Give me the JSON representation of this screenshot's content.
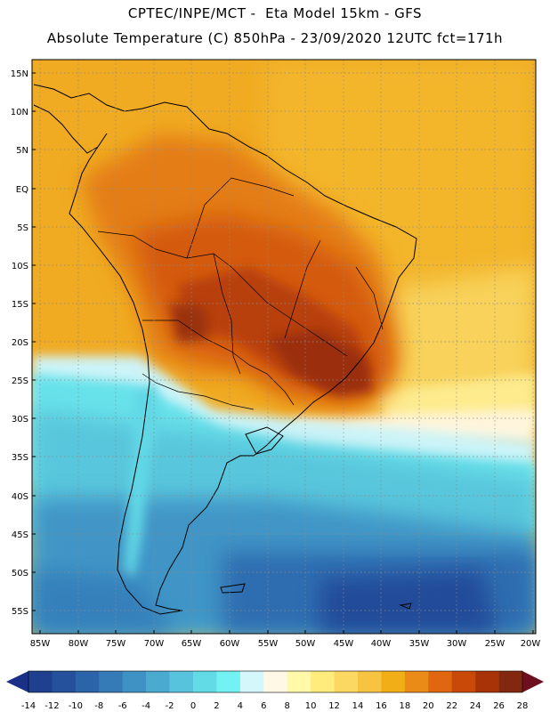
{
  "header": {
    "line1": "CPTEC/INPE/MCT -  Eta Model 15km - GFS",
    "line2": "Absolute Temperature (C) 850hPa - 23/09/2020 12UTC fct=171h"
  },
  "latitude_labels": [
    "15N",
    "10N",
    "5N",
    "EQ",
    "5S",
    "10S",
    "15S",
    "20S",
    "25S",
    "30S",
    "35S",
    "40S",
    "45S",
    "50S",
    "55S"
  ],
  "longitude_labels": [
    "85W",
    "80W",
    "75W",
    "70W",
    "65W",
    "60W",
    "55W",
    "50W",
    "45W",
    "40W",
    "35W",
    "30W",
    "25W",
    "20W"
  ],
  "colorbar": {
    "ticks": [
      "-14",
      "-12",
      "-10",
      "-8",
      "-6",
      "-4",
      "-2",
      "0",
      "2",
      "4",
      "6",
      "8",
      "10",
      "12",
      "14",
      "16",
      "18",
      "20",
      "22",
      "24",
      "26",
      "28"
    ],
    "colors": [
      "#1f3f8f",
      "#24509c",
      "#2c64aa",
      "#357bb8",
      "#3f92c4",
      "#4aaad0",
      "#58c3dc",
      "#62dbe6",
      "#72f2f2",
      "#d3f7fb",
      "#fff8e6",
      "#fff9a8",
      "#ffec7d",
      "#fbd862",
      "#f6c441",
      "#f2ae16",
      "#ea8b18",
      "#e06610",
      "#c94a08",
      "#a83306",
      "#822810"
    ],
    "low_arrow_color": "#1a2f86",
    "high_arrow_color": "#6d0f1f"
  }
}
